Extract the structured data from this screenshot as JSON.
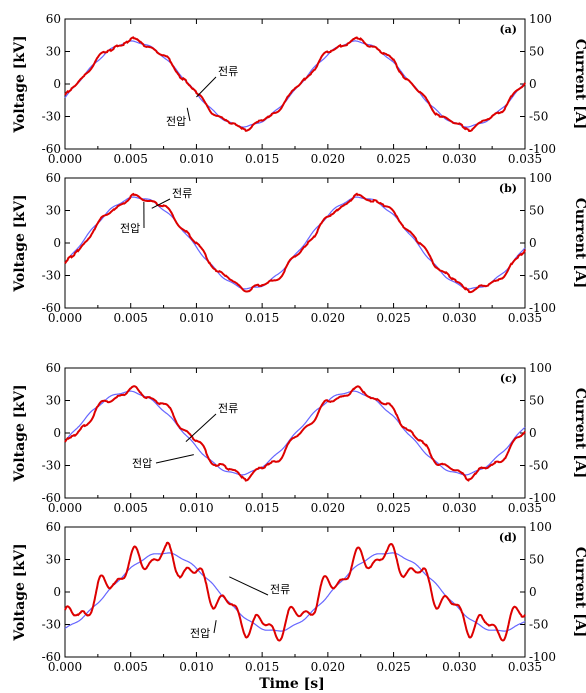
{
  "figure": {
    "xlabel": "Time [s]",
    "colors": {
      "voltage": "#6666ff",
      "current": "#dd0000",
      "axis": "#000000"
    }
  },
  "chart_data": [
    {
      "type": "line",
      "tag": "(a)",
      "xlim": [
        0.0,
        0.035
      ],
      "ylim_left": [
        -60,
        60
      ],
      "ylim_right": [
        -100,
        100
      ],
      "ylabel_left": "Voltage [kV]",
      "ylabel_right": "Current [A]",
      "xticks": [
        "0.000",
        "0.005",
        "0.010",
        "0.015",
        "0.020",
        "0.025",
        "0.030",
        "0.035"
      ],
      "yticks_left": [
        "-60",
        "-30",
        "0",
        "30",
        "60"
      ],
      "yticks_right": [
        "-100",
        "-50",
        "0",
        "50",
        "100"
      ],
      "annotations": [
        "전류",
        "전압"
      ],
      "voltage": {
        "amplitude_kV": 39,
        "frequency_hz": 58.8,
        "phase_rad": -0.33,
        "offset_kV": 0
      },
      "current": {
        "amplitude_A": 66,
        "frequency_hz": 58.8,
        "phase_rad": -0.33,
        "offset_A": 0,
        "ripple": "low"
      }
    },
    {
      "type": "line",
      "tag": "(b)",
      "xlim": [
        0.0,
        0.035
      ],
      "ylim_left": [
        -60,
        60
      ],
      "ylim_right": [
        -100,
        100
      ],
      "ylabel_left": "Voltage [kV]",
      "ylabel_right": "Current [A]",
      "xticks": [
        "0.000",
        "0.005",
        "0.010",
        "0.015",
        "0.020",
        "0.025",
        "0.030",
        "0.035"
      ],
      "yticks_left": [
        "-60",
        "-30",
        "0",
        "30",
        "60"
      ],
      "yticks_right": [
        "-100",
        "-50",
        "0",
        "50",
        "100"
      ],
      "annotations": [
        "전류",
        "전압"
      ],
      "voltage": {
        "amplitude_kV": 42,
        "frequency_hz": 58.8,
        "phase_rad": -0.46,
        "offset_kV": 0
      },
      "current": {
        "amplitude_A": 70,
        "frequency_hz": 58.8,
        "phase_rad": -0.52,
        "offset_A": 0,
        "ripple": "low"
      }
    },
    {
      "type": "line",
      "tag": "(c)",
      "xlim": [
        0.0,
        0.035
      ],
      "ylim_left": [
        -60,
        60
      ],
      "ylim_right": [
        -100,
        100
      ],
      "ylabel_left": "Voltage [kV]",
      "ylabel_right": "Current [A]",
      "xticks": [
        "0.000",
        "0.005",
        "0.010",
        "0.015",
        "0.020",
        "0.025",
        "0.030",
        "0.035"
      ],
      "yticks_left": [
        "-60",
        "-30",
        "0",
        "30",
        "60"
      ],
      "yticks_right": [
        "-100",
        "-50",
        "0",
        "50",
        "100"
      ],
      "annotations": [
        "전류",
        "전압"
      ],
      "voltage": {
        "amplitude_kV": 38,
        "frequency_hz": 58.8,
        "phase_rad": -0.21,
        "offset_kV": 0
      },
      "current": {
        "amplitude_A": 64,
        "frequency_hz": 58.8,
        "phase_rad": -0.33,
        "offset_A": 0,
        "ripple": "medium"
      }
    },
    {
      "type": "line",
      "tag": "(d)",
      "xlim": [
        0.0,
        0.035
      ],
      "ylim_left": [
        -60,
        60
      ],
      "ylim_right": [
        -100,
        100
      ],
      "ylabel_left": "Voltage [kV]",
      "ylabel_right": "Current [A]",
      "xticks": [
        "0.000",
        "0.005",
        "0.010",
        "0.015",
        "0.020",
        "0.025",
        "0.030",
        "0.035"
      ],
      "yticks_left": [
        "-60",
        "-30",
        "0",
        "30",
        "60"
      ],
      "yticks_right": [
        "-100",
        "-50",
        "0",
        "50",
        "100"
      ],
      "annotations": [
        "전류",
        "전압"
      ],
      "voltage": {
        "amplitude_kV": 36,
        "frequency_hz": 58.8,
        "phase_rad": -1.2,
        "offset_kV": 0
      },
      "current": {
        "amplitude_A": 55,
        "frequency_hz": 58.8,
        "phase_rad": -1.0,
        "offset_A": 0,
        "ripple": "high"
      }
    }
  ]
}
